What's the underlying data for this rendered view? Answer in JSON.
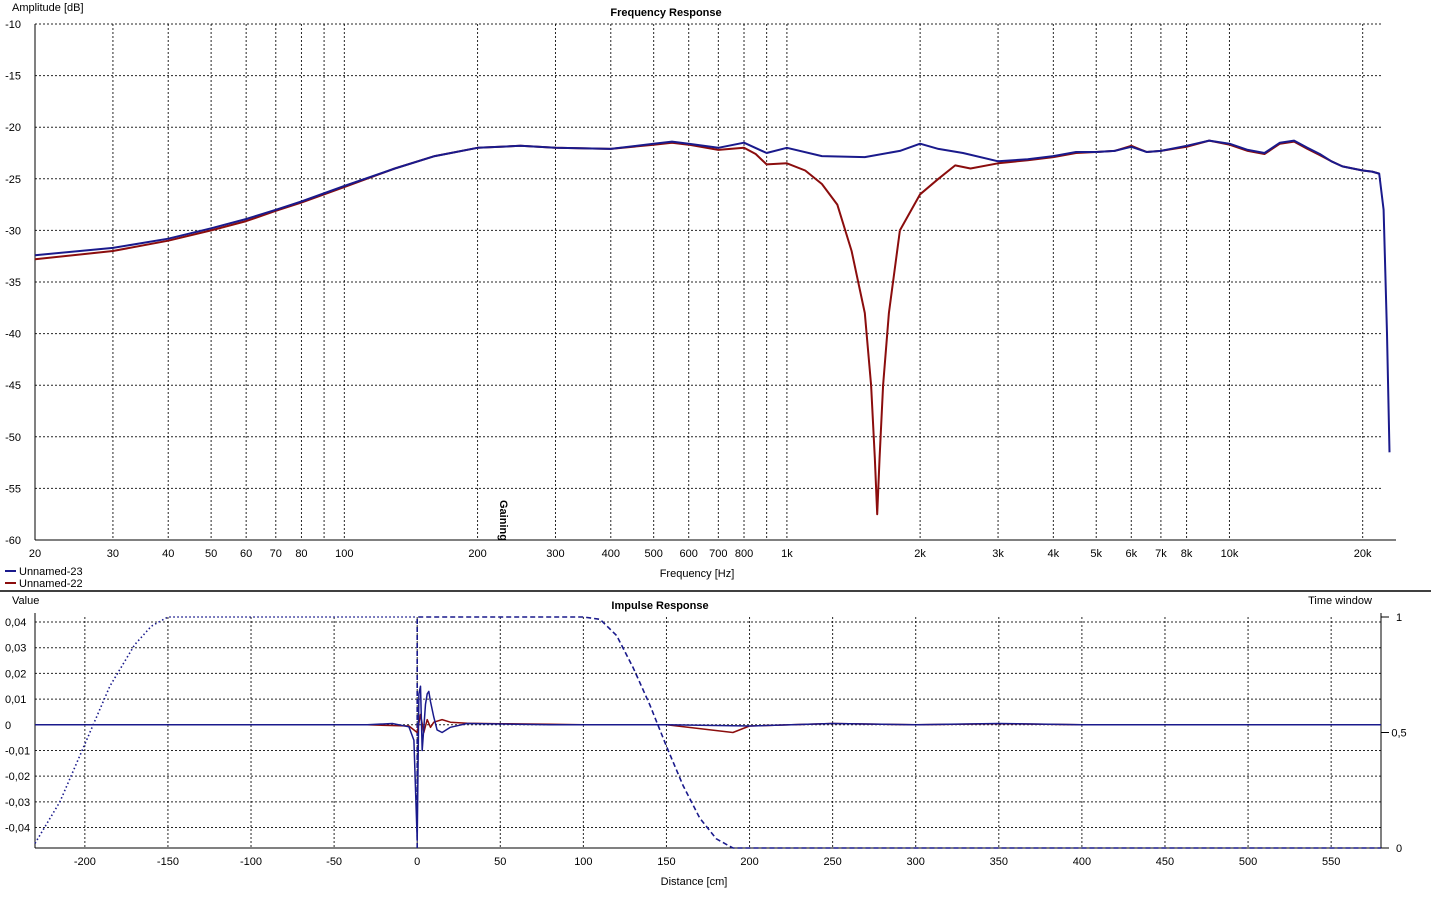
{
  "chart_data": [
    {
      "type": "line",
      "title": "Frequency Response",
      "xlabel": "Frequency [Hz]",
      "ylabel": "Amplitude [dB]",
      "xscale": "log",
      "xlim": [
        20,
        25000
      ],
      "ylim": [
        -60,
        -10
      ],
      "yticks": [
        -10,
        -15,
        -20,
        -25,
        -30,
        -35,
        -40,
        -45,
        -50,
        -55,
        -60
      ],
      "xticks": [
        {
          "v": 20,
          "label": "20"
        },
        {
          "v": 30,
          "label": "30"
        },
        {
          "v": 40,
          "label": "40"
        },
        {
          "v": 50,
          "label": "50"
        },
        {
          "v": 60,
          "label": "60"
        },
        {
          "v": 70,
          "label": "70"
        },
        {
          "v": 80,
          "label": "80"
        },
        {
          "v": 100,
          "label": "100"
        },
        {
          "v": 200,
          "label": "200"
        },
        {
          "v": 300,
          "label": "300"
        },
        {
          "v": 400,
          "label": "400"
        },
        {
          "v": 500,
          "label": "500"
        },
        {
          "v": 600,
          "label": "600"
        },
        {
          "v": 700,
          "label": "700"
        },
        {
          "v": 800,
          "label": "800"
        },
        {
          "v": 1000,
          "label": "1k"
        },
        {
          "v": 2000,
          "label": "2k"
        },
        {
          "v": 3000,
          "label": "3k"
        },
        {
          "v": 4000,
          "label": "4k"
        },
        {
          "v": 5000,
          "label": "5k"
        },
        {
          "v": 6000,
          "label": "6k"
        },
        {
          "v": 7000,
          "label": "7k"
        },
        {
          "v": 8000,
          "label": "8k"
        },
        {
          "v": 10000,
          "label": "10k"
        },
        {
          "v": 20000,
          "label": "20k"
        }
      ],
      "grid_minor": [
        90,
        900
      ],
      "annotation": {
        "text": "Gaining",
        "x": 220
      },
      "legend": {
        "placement": "bottom-left"
      },
      "series": [
        {
          "name": "Unnamed-23",
          "color": "#1a1a8c",
          "points": [
            [
              20,
              -32.4
            ],
            [
              30,
              -31.7
            ],
            [
              40,
              -30.8
            ],
            [
              50,
              -29.8
            ],
            [
              60,
              -28.9
            ],
            [
              70,
              -28.0
            ],
            [
              80,
              -27.2
            ],
            [
              100,
              -25.7
            ],
            [
              130,
              -24.0
            ],
            [
              160,
              -22.8
            ],
            [
              200,
              -22.0
            ],
            [
              250,
              -21.8
            ],
            [
              300,
              -22.0
            ],
            [
              400,
              -22.1
            ],
            [
              500,
              -21.6
            ],
            [
              550,
              -21.4
            ],
            [
              600,
              -21.6
            ],
            [
              700,
              -22.0
            ],
            [
              800,
              -21.5
            ],
            [
              900,
              -22.5
            ],
            [
              1000,
              -22.0
            ],
            [
              1200,
              -22.8
            ],
            [
              1500,
              -22.9
            ],
            [
              1800,
              -22.3
            ],
            [
              2000,
              -21.6
            ],
            [
              2200,
              -22.1
            ],
            [
              2500,
              -22.5
            ],
            [
              3000,
              -23.3
            ],
            [
              3500,
              -23.1
            ],
            [
              4000,
              -22.8
            ],
            [
              4500,
              -22.4
            ],
            [
              5000,
              -22.4
            ],
            [
              5500,
              -22.3
            ],
            [
              6000,
              -21.9
            ],
            [
              6500,
              -22.4
            ],
            [
              7000,
              -22.3
            ],
            [
              8000,
              -21.8
            ],
            [
              9000,
              -21.3
            ],
            [
              10000,
              -21.6
            ],
            [
              11000,
              -22.2
            ],
            [
              12000,
              -22.5
            ],
            [
              13000,
              -21.5
            ],
            [
              14000,
              -21.3
            ],
            [
              15000,
              -22.0
            ],
            [
              16000,
              -22.6
            ],
            [
              17000,
              -23.3
            ],
            [
              18000,
              -23.8
            ],
            [
              19000,
              -24.0
            ],
            [
              20000,
              -24.2
            ],
            [
              21000,
              -24.3
            ],
            [
              21800,
              -24.5
            ],
            [
              22300,
              -28
            ],
            [
              22700,
              -40
            ],
            [
              23000,
              -51.5
            ]
          ]
        },
        {
          "name": "Unnamed-22",
          "color": "#8b0d0d",
          "points": [
            [
              20,
              -32.8
            ],
            [
              30,
              -32.0
            ],
            [
              40,
              -31.0
            ],
            [
              50,
              -30.0
            ],
            [
              60,
              -29.1
            ],
            [
              70,
              -28.1
            ],
            [
              80,
              -27.3
            ],
            [
              100,
              -25.8
            ],
            [
              130,
              -24.0
            ],
            [
              160,
              -22.8
            ],
            [
              200,
              -22.0
            ],
            [
              250,
              -21.8
            ],
            [
              300,
              -22.0
            ],
            [
              400,
              -22.1
            ],
            [
              500,
              -21.7
            ],
            [
              550,
              -21.5
            ],
            [
              600,
              -21.7
            ],
            [
              700,
              -22.2
            ],
            [
              800,
              -22.0
            ],
            [
              850,
              -22.6
            ],
            [
              900,
              -23.6
            ],
            [
              1000,
              -23.5
            ],
            [
              1100,
              -24.2
            ],
            [
              1200,
              -25.5
            ],
            [
              1300,
              -27.5
            ],
            [
              1400,
              -32.0
            ],
            [
              1500,
              -38.0
            ],
            [
              1550,
              -45.0
            ],
            [
              1580,
              -52.0
            ],
            [
              1600,
              -57.5
            ],
            [
              1620,
              -52.0
            ],
            [
              1650,
              -45.0
            ],
            [
              1700,
              -38.0
            ],
            [
              1800,
              -30.0
            ],
            [
              2000,
              -26.5
            ],
            [
              2200,
              -25.0
            ],
            [
              2400,
              -23.7
            ],
            [
              2600,
              -24.0
            ],
            [
              3000,
              -23.5
            ],
            [
              3500,
              -23.2
            ],
            [
              4000,
              -22.9
            ],
            [
              4500,
              -22.5
            ],
            [
              5000,
              -22.4
            ],
            [
              5500,
              -22.3
            ],
            [
              6000,
              -21.8
            ],
            [
              6500,
              -22.4
            ],
            [
              7000,
              -22.3
            ],
            [
              8000,
              -21.9
            ],
            [
              9000,
              -21.3
            ],
            [
              10000,
              -21.7
            ],
            [
              11000,
              -22.3
            ],
            [
              12000,
              -22.6
            ],
            [
              13000,
              -21.6
            ],
            [
              14000,
              -21.4
            ],
            [
              15000,
              -22.1
            ],
            [
              16000,
              -22.7
            ],
            [
              17000,
              -23.3
            ],
            [
              18000,
              -23.8
            ],
            [
              19000,
              -24.0
            ],
            [
              20000,
              -24.2
            ],
            [
              21000,
              -24.3
            ],
            [
              21800,
              -24.5
            ]
          ]
        }
      ]
    },
    {
      "type": "line",
      "title": "Impulse Response",
      "xlabel": "Distance [cm]",
      "ylabel": "Value",
      "y2label": "Time window",
      "xlim": [
        -230,
        580
      ],
      "ylim": [
        -0.044,
        0.044
      ],
      "y2lim": [
        0,
        1
      ],
      "xticks": [
        -200,
        -150,
        -100,
        -50,
        0,
        50,
        100,
        150,
        200,
        250,
        300,
        350,
        400,
        450,
        500,
        550
      ],
      "yticks": [
        {
          "v": 0.04,
          "label": "0,04"
        },
        {
          "v": 0.03,
          "label": "0,03"
        },
        {
          "v": 0.02,
          "label": "0,02"
        },
        {
          "v": 0.01,
          "label": "0,01"
        },
        {
          "v": 0,
          "label": "0"
        },
        {
          "v": -0.01,
          "label": "-0,01"
        },
        {
          "v": -0.02,
          "label": "-0,02"
        },
        {
          "v": -0.03,
          "label": "-0,03"
        },
        {
          "v": -0.04,
          "label": "-0,04"
        }
      ],
      "y2ticks": [
        {
          "v": 1,
          "label": "1"
        },
        {
          "v": 0.5,
          "label": "0,5"
        },
        {
          "v": 0,
          "label": "0"
        }
      ],
      "window_left": [
        [
          -230,
          0.02
        ],
        [
          -215,
          0.2
        ],
        [
          -200,
          0.45
        ],
        [
          -185,
          0.7
        ],
        [
          -170,
          0.88
        ],
        [
          -160,
          0.96
        ],
        [
          -150,
          1.0
        ],
        [
          -100,
          1.0
        ],
        [
          -50,
          1.0
        ],
        [
          0,
          1.0
        ]
      ],
      "window_right": [
        [
          0,
          0
        ],
        [
          0,
          1.0
        ],
        [
          100,
          1.0
        ],
        [
          110,
          0.99
        ],
        [
          120,
          0.92
        ],
        [
          130,
          0.78
        ],
        [
          140,
          0.62
        ],
        [
          150,
          0.44
        ],
        [
          160,
          0.27
        ],
        [
          170,
          0.13
        ],
        [
          180,
          0.04
        ],
        [
          190,
          0.0
        ],
        [
          580,
          0.0
        ]
      ],
      "series": [
        {
          "name": "Unnamed-23",
          "color": "#1a1a8c",
          "points": [
            [
              -230,
              0
            ],
            [
              -30,
              0
            ],
            [
              -15,
              0.0005
            ],
            [
              -5,
              -0.0008
            ],
            [
              -2,
              -0.006
            ],
            [
              0,
              -0.045
            ],
            [
              1,
              0.012
            ],
            [
              2,
              0.015
            ],
            [
              3,
              -0.01
            ],
            [
              5,
              0.008
            ],
            [
              6,
              0.012
            ],
            [
              7,
              0.013
            ],
            [
              8,
              0.009
            ],
            [
              10,
              0.003
            ],
            [
              12,
              -0.002
            ],
            [
              15,
              -0.003
            ],
            [
              20,
              -0.001
            ],
            [
              30,
              0.0005
            ],
            [
              50,
              0.0003
            ],
            [
              80,
              0
            ],
            [
              100,
              0
            ],
            [
              150,
              0
            ],
            [
              200,
              -0.0005
            ],
            [
              250,
              0.0005
            ],
            [
              300,
              0
            ],
            [
              350,
              0.0005
            ],
            [
              400,
              0
            ],
            [
              450,
              0
            ],
            [
              500,
              0
            ],
            [
              580,
              0
            ]
          ]
        },
        {
          "name": "Unnamed-22",
          "color": "#8b0d0d",
          "points": [
            [
              -230,
              0
            ],
            [
              -30,
              0
            ],
            [
              -5,
              -0.0005
            ],
            [
              0,
              -0.003
            ],
            [
              2,
              0.004
            ],
            [
              4,
              -0.003
            ],
            [
              6,
              0.002
            ],
            [
              8,
              -0.001
            ],
            [
              10,
              0.001
            ],
            [
              15,
              0.002
            ],
            [
              20,
              0.001
            ],
            [
              30,
              0.0006
            ],
            [
              50,
              0.0004
            ],
            [
              80,
              0.0002
            ],
            [
              100,
              0
            ],
            [
              150,
              0
            ],
            [
              190,
              -0.003
            ],
            [
              200,
              -0.0005
            ],
            [
              250,
              0.0005
            ],
            [
              300,
              0
            ],
            [
              350,
              0.0004
            ],
            [
              400,
              0
            ],
            [
              450,
              0
            ],
            [
              500,
              0
            ],
            [
              580,
              0
            ]
          ]
        }
      ]
    }
  ]
}
